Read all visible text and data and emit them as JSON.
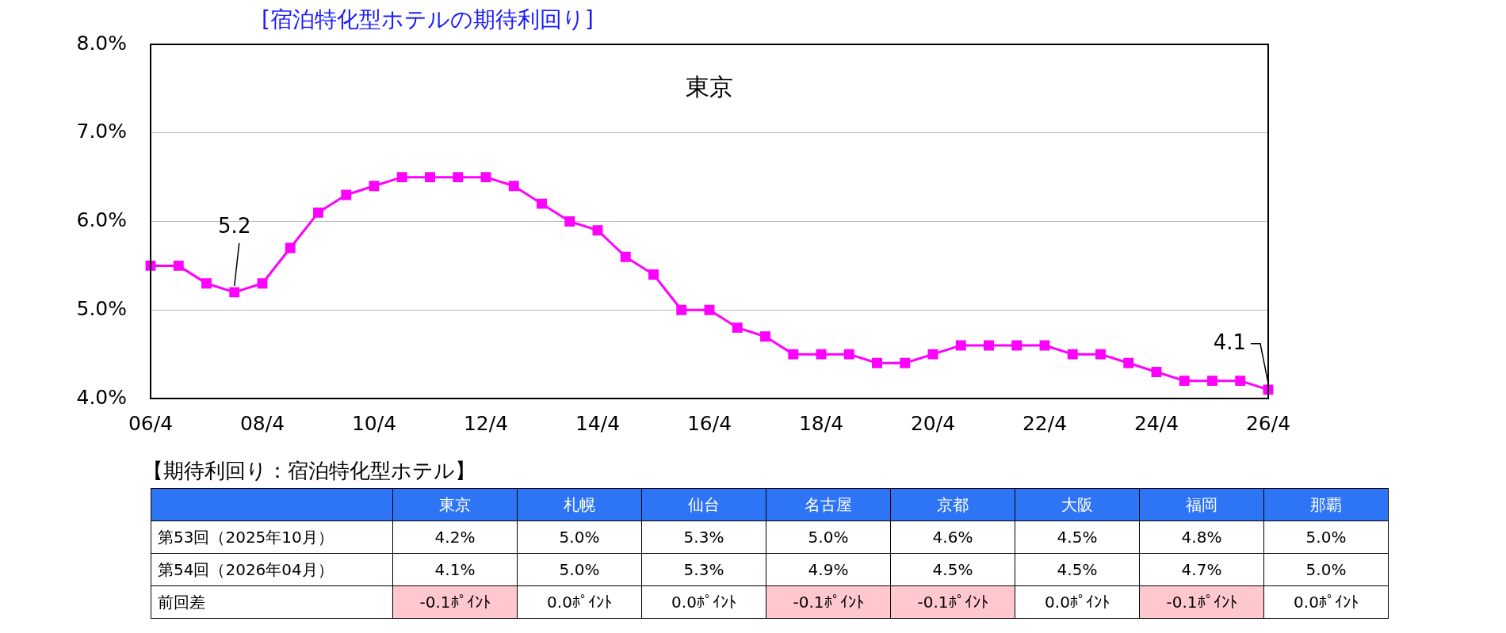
{
  "chart_data": [
    {
      "type": "line",
      "title": "[宿泊特化型ホテルの期待利回り]",
      "subtitle": "東京",
      "categories": [
        "06/4",
        null,
        null,
        null,
        "08/4",
        null,
        null,
        null,
        "10/4",
        null,
        null,
        null,
        "12/4",
        null,
        null,
        null,
        "14/4",
        null,
        null,
        null,
        "16/4",
        null,
        null,
        null,
        "18/4",
        null,
        null,
        null,
        "20/4",
        null,
        null,
        null,
        "22/4",
        null,
        null,
        null,
        "24/4",
        null,
        null,
        null,
        "26/4"
      ],
      "series": [
        {
          "color": "#ff00ff",
          "values": [
            5.5,
            5.5,
            5.3,
            5.2,
            5.3,
            5.7,
            6.1,
            6.3,
            6.4,
            6.5,
            6.5,
            6.5,
            6.5,
            6.4,
            6.2,
            6.0,
            5.9,
            5.6,
            5.4,
            5.0,
            5.0,
            4.8,
            4.7,
            4.5,
            4.5,
            4.5,
            4.4,
            4.4,
            4.5,
            4.6,
            4.6,
            4.6,
            4.6,
            4.5,
            4.5,
            4.4,
            4.3,
            4.2,
            4.2,
            4.2,
            4.1
          ],
          "value_labels": [
            null,
            null,
            null,
            "5.2",
            null,
            null,
            null,
            null,
            null,
            null,
            null,
            null,
            null,
            null,
            null,
            null,
            null,
            null,
            null,
            null,
            null,
            null,
            null,
            null,
            null,
            null,
            null,
            null,
            null,
            null,
            null,
            null,
            null,
            null,
            null,
            null,
            null,
            null,
            null,
            null,
            "4.1"
          ]
        }
      ],
      "ylim": [
        4,
        8
      ],
      "yticks": [
        {
          "value": 4,
          "label": "4.0%"
        },
        {
          "value": 5,
          "label": "5.0%"
        },
        {
          "value": 6,
          "label": "6.0%"
        },
        {
          "value": 7,
          "label": "7.0%"
        },
        {
          "value": 8,
          "label": "8.0%"
        }
      ],
      "grid": "y",
      "legend": false,
      "marker": "square",
      "line_style": "solid"
    },
    {
      "type": "heatmap",
      "title": "【期待利回り：宿泊特化型ホテル】",
      "categories": [
        "東京",
        "札幌",
        "仙台",
        "名古屋",
        "京都",
        "大阪",
        "福岡",
        "那覇"
      ],
      "y_categories": [
        "第53回（2025年10月）",
        "第54回（2026年04月）",
        "前回差"
      ],
      "cells": [
        [
          4.2,
          5.0,
          5.3,
          5.0,
          4.6,
          4.5,
          4.8,
          5.0
        ],
        [
          4.1,
          5.0,
          5.3,
          4.9,
          4.5,
          4.5,
          4.7,
          5.0
        ],
        [
          -0.1,
          0.0,
          0.0,
          -0.1,
          -0.1,
          0.0,
          -0.1,
          0.0
        ]
      ],
      "cell_labels": [
        [
          "4.2%",
          "5.0%",
          "5.3%",
          "5.0%",
          "4.6%",
          "4.5%",
          "4.8%",
          "5.0%"
        ],
        [
          "4.1%",
          "5.0%",
          "5.3%",
          "4.9%",
          "4.5%",
          "4.5%",
          "4.7%",
          "5.0%"
        ],
        [
          "-0.1ﾎﾟｲﾝﾄ",
          "0.0ﾎﾟｲﾝﾄ",
          "0.0ﾎﾟｲﾝﾄ",
          "-0.1ﾎﾟｲﾝﾄ",
          "-0.1ﾎﾟｲﾝﾄ",
          "0.0ﾎﾟｲﾝﾄ",
          "-0.1ﾎﾟｲﾝﾄ",
          "0.0ﾎﾟｲﾝﾄ"
        ]
      ]
    }
  ]
}
